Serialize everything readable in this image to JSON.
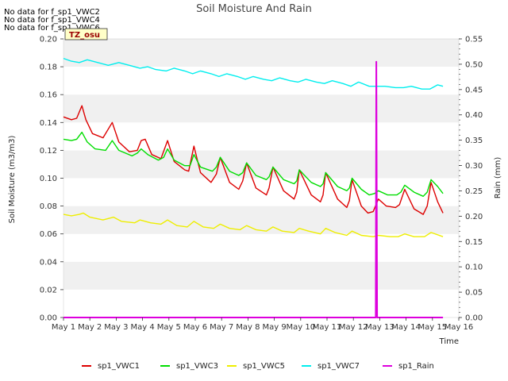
{
  "chart_data": {
    "type": "line",
    "title": "Soil Moisture And Rain",
    "xlabel": "Time",
    "ylabel": "Soil Moisture (m3/m3)",
    "y2label": "Rain (mm)",
    "site_label": "TZ_osu",
    "notes": [
      "No data for f_sp1_VWC2",
      "No data for f_sp1_VWC4",
      "No data for f_sp1_VWC6"
    ],
    "xlim": [
      1,
      16
    ],
    "ylim": [
      0.0,
      0.2
    ],
    "y2lim": [
      0.0,
      0.55
    ],
    "x_tick_labels": [
      "May 1",
      "May 2",
      "May 3",
      "May 4",
      "May 5",
      "May 6",
      "May 7",
      "May 8",
      "May 9",
      "May 10",
      "May 11",
      "May 12",
      "May 13",
      "May 14",
      "May 15",
      "May 16"
    ],
    "y_tick_labels": [
      "0.00",
      "0.02",
      "0.04",
      "0.06",
      "0.08",
      "0.10",
      "0.12",
      "0.14",
      "0.16",
      "0.18",
      "0.20"
    ],
    "y2_tick_labels": [
      "0.00",
      "0.05",
      "0.10",
      "0.15",
      "0.20",
      "0.25",
      "0.30",
      "0.35",
      "0.40",
      "0.45",
      "0.50",
      "0.55"
    ],
    "grid": "horizontal bands",
    "legend_position": "bottom",
    "series": [
      {
        "name": "sp1_VWC1",
        "color": "#dd0000",
        "axis": "left",
        "points": [
          [
            1.0,
            0.144
          ],
          [
            1.3,
            0.142
          ],
          [
            1.5,
            0.143
          ],
          [
            1.7,
            0.152
          ],
          [
            1.85,
            0.142
          ],
          [
            2.1,
            0.132
          ],
          [
            2.5,
            0.129
          ],
          [
            2.85,
            0.14
          ],
          [
            3.1,
            0.126
          ],
          [
            3.5,
            0.119
          ],
          [
            3.8,
            0.12
          ],
          [
            3.95,
            0.127
          ],
          [
            4.1,
            0.128
          ],
          [
            4.35,
            0.117
          ],
          [
            4.7,
            0.114
          ],
          [
            4.95,
            0.127
          ],
          [
            5.2,
            0.112
          ],
          [
            5.6,
            0.106
          ],
          [
            5.75,
            0.105
          ],
          [
            5.95,
            0.123
          ],
          [
            6.2,
            0.104
          ],
          [
            6.6,
            0.097
          ],
          [
            6.8,
            0.103
          ],
          [
            6.95,
            0.115
          ],
          [
            7.3,
            0.097
          ],
          [
            7.65,
            0.092
          ],
          [
            7.8,
            0.098
          ],
          [
            7.95,
            0.111
          ],
          [
            8.3,
            0.093
          ],
          [
            8.7,
            0.088
          ],
          [
            8.8,
            0.093
          ],
          [
            8.95,
            0.108
          ],
          [
            9.35,
            0.091
          ],
          [
            9.75,
            0.085
          ],
          [
            9.85,
            0.09
          ],
          [
            9.95,
            0.106
          ],
          [
            10.4,
            0.088
          ],
          [
            10.75,
            0.083
          ],
          [
            10.85,
            0.088
          ],
          [
            10.95,
            0.104
          ],
          [
            11.4,
            0.085
          ],
          [
            11.75,
            0.079
          ],
          [
            11.85,
            0.084
          ],
          [
            11.95,
            0.099
          ],
          [
            12.3,
            0.08
          ],
          [
            12.55,
            0.075
          ],
          [
            12.75,
            0.076
          ],
          [
            12.95,
            0.085
          ],
          [
            13.25,
            0.08
          ],
          [
            13.6,
            0.079
          ],
          [
            13.75,
            0.081
          ],
          [
            13.95,
            0.092
          ],
          [
            14.3,
            0.078
          ],
          [
            14.65,
            0.074
          ],
          [
            14.8,
            0.08
          ],
          [
            14.95,
            0.097
          ],
          [
            15.2,
            0.083
          ],
          [
            15.4,
            0.075
          ]
        ]
      },
      {
        "name": "sp1_VWC3",
        "color": "#00dd00",
        "axis": "left",
        "points": [
          [
            1.0,
            0.128
          ],
          [
            1.3,
            0.127
          ],
          [
            1.5,
            0.128
          ],
          [
            1.7,
            0.133
          ],
          [
            1.9,
            0.126
          ],
          [
            2.2,
            0.121
          ],
          [
            2.6,
            0.12
          ],
          [
            2.85,
            0.127
          ],
          [
            3.1,
            0.12
          ],
          [
            3.6,
            0.116
          ],
          [
            3.8,
            0.118
          ],
          [
            3.95,
            0.121
          ],
          [
            4.2,
            0.117
          ],
          [
            4.6,
            0.113
          ],
          [
            4.8,
            0.115
          ],
          [
            4.95,
            0.121
          ],
          [
            5.2,
            0.113
          ],
          [
            5.6,
            0.109
          ],
          [
            5.8,
            0.109
          ],
          [
            5.95,
            0.117
          ],
          [
            6.2,
            0.108
          ],
          [
            6.65,
            0.105
          ],
          [
            6.8,
            0.108
          ],
          [
            6.95,
            0.115
          ],
          [
            7.3,
            0.105
          ],
          [
            7.65,
            0.102
          ],
          [
            7.8,
            0.104
          ],
          [
            7.95,
            0.111
          ],
          [
            8.3,
            0.102
          ],
          [
            8.7,
            0.099
          ],
          [
            8.8,
            0.101
          ],
          [
            8.95,
            0.108
          ],
          [
            9.35,
            0.099
          ],
          [
            9.75,
            0.096
          ],
          [
            9.85,
            0.098
          ],
          [
            9.95,
            0.106
          ],
          [
            10.4,
            0.097
          ],
          [
            10.75,
            0.094
          ],
          [
            10.85,
            0.096
          ],
          [
            10.95,
            0.104
          ],
          [
            11.4,
            0.094
          ],
          [
            11.75,
            0.091
          ],
          [
            11.85,
            0.093
          ],
          [
            11.95,
            0.1
          ],
          [
            12.3,
            0.092
          ],
          [
            12.6,
            0.088
          ],
          [
            12.8,
            0.089
          ],
          [
            12.95,
            0.091
          ],
          [
            13.3,
            0.088
          ],
          [
            13.65,
            0.088
          ],
          [
            13.8,
            0.09
          ],
          [
            13.95,
            0.095
          ],
          [
            14.3,
            0.09
          ],
          [
            14.65,
            0.087
          ],
          [
            14.8,
            0.09
          ],
          [
            14.95,
            0.099
          ],
          [
            15.2,
            0.094
          ],
          [
            15.4,
            0.089
          ]
        ]
      },
      {
        "name": "sp1_VWC5",
        "color": "#eeee00",
        "axis": "left",
        "points": [
          [
            1.0,
            0.074
          ],
          [
            1.3,
            0.073
          ],
          [
            1.6,
            0.074
          ],
          [
            1.75,
            0.075
          ],
          [
            2.0,
            0.072
          ],
          [
            2.5,
            0.07
          ],
          [
            2.9,
            0.072
          ],
          [
            3.2,
            0.069
          ],
          [
            3.7,
            0.068
          ],
          [
            3.9,
            0.07
          ],
          [
            4.3,
            0.068
          ],
          [
            4.7,
            0.067
          ],
          [
            4.95,
            0.07
          ],
          [
            5.3,
            0.066
          ],
          [
            5.7,
            0.065
          ],
          [
            5.95,
            0.069
          ],
          [
            6.3,
            0.065
          ],
          [
            6.7,
            0.064
          ],
          [
            6.95,
            0.067
          ],
          [
            7.3,
            0.064
          ],
          [
            7.7,
            0.063
          ],
          [
            7.95,
            0.066
          ],
          [
            8.3,
            0.063
          ],
          [
            8.7,
            0.062
          ],
          [
            8.95,
            0.065
          ],
          [
            9.3,
            0.062
          ],
          [
            9.75,
            0.061
          ],
          [
            9.95,
            0.064
          ],
          [
            10.3,
            0.062
          ],
          [
            10.75,
            0.06
          ],
          [
            10.95,
            0.064
          ],
          [
            11.3,
            0.061
          ],
          [
            11.75,
            0.059
          ],
          [
            11.95,
            0.062
          ],
          [
            12.3,
            0.059
          ],
          [
            12.75,
            0.058
          ],
          [
            12.95,
            0.059
          ],
          [
            13.4,
            0.058
          ],
          [
            13.7,
            0.058
          ],
          [
            13.95,
            0.06
          ],
          [
            14.3,
            0.058
          ],
          [
            14.7,
            0.058
          ],
          [
            14.95,
            0.061
          ],
          [
            15.4,
            0.058
          ]
        ]
      },
      {
        "name": "sp1_VWC7",
        "color": "#00eeee",
        "axis": "left",
        "points": [
          [
            1.0,
            0.186
          ],
          [
            1.3,
            0.184
          ],
          [
            1.6,
            0.183
          ],
          [
            1.9,
            0.185
          ],
          [
            2.3,
            0.183
          ],
          [
            2.7,
            0.181
          ],
          [
            3.1,
            0.183
          ],
          [
            3.5,
            0.181
          ],
          [
            3.9,
            0.179
          ],
          [
            4.2,
            0.18
          ],
          [
            4.5,
            0.178
          ],
          [
            4.9,
            0.177
          ],
          [
            5.2,
            0.179
          ],
          [
            5.6,
            0.177
          ],
          [
            5.9,
            0.175
          ],
          [
            6.2,
            0.177
          ],
          [
            6.6,
            0.175
          ],
          [
            6.9,
            0.173
          ],
          [
            7.2,
            0.175
          ],
          [
            7.6,
            0.173
          ],
          [
            7.9,
            0.171
          ],
          [
            8.2,
            0.173
          ],
          [
            8.6,
            0.171
          ],
          [
            8.9,
            0.17
          ],
          [
            9.2,
            0.172
          ],
          [
            9.6,
            0.17
          ],
          [
            9.9,
            0.169
          ],
          [
            10.2,
            0.171
          ],
          [
            10.6,
            0.169
          ],
          [
            10.9,
            0.168
          ],
          [
            11.2,
            0.17
          ],
          [
            11.6,
            0.168
          ],
          [
            11.9,
            0.166
          ],
          [
            12.2,
            0.169
          ],
          [
            12.6,
            0.166
          ],
          [
            12.9,
            0.166
          ],
          [
            13.2,
            0.166
          ],
          [
            13.6,
            0.165
          ],
          [
            13.9,
            0.165
          ],
          [
            14.2,
            0.166
          ],
          [
            14.6,
            0.164
          ],
          [
            14.9,
            0.164
          ],
          [
            15.2,
            0.167
          ],
          [
            15.4,
            0.166
          ]
        ]
      },
      {
        "name": "sp1_Rain",
        "color": "#dd00dd",
        "axis": "right",
        "points": [
          [
            1.0,
            0.0
          ],
          [
            12.85,
            0.0
          ],
          [
            12.87,
            0.505
          ],
          [
            12.9,
            0.0
          ],
          [
            15.4,
            0.0
          ]
        ]
      }
    ]
  }
}
